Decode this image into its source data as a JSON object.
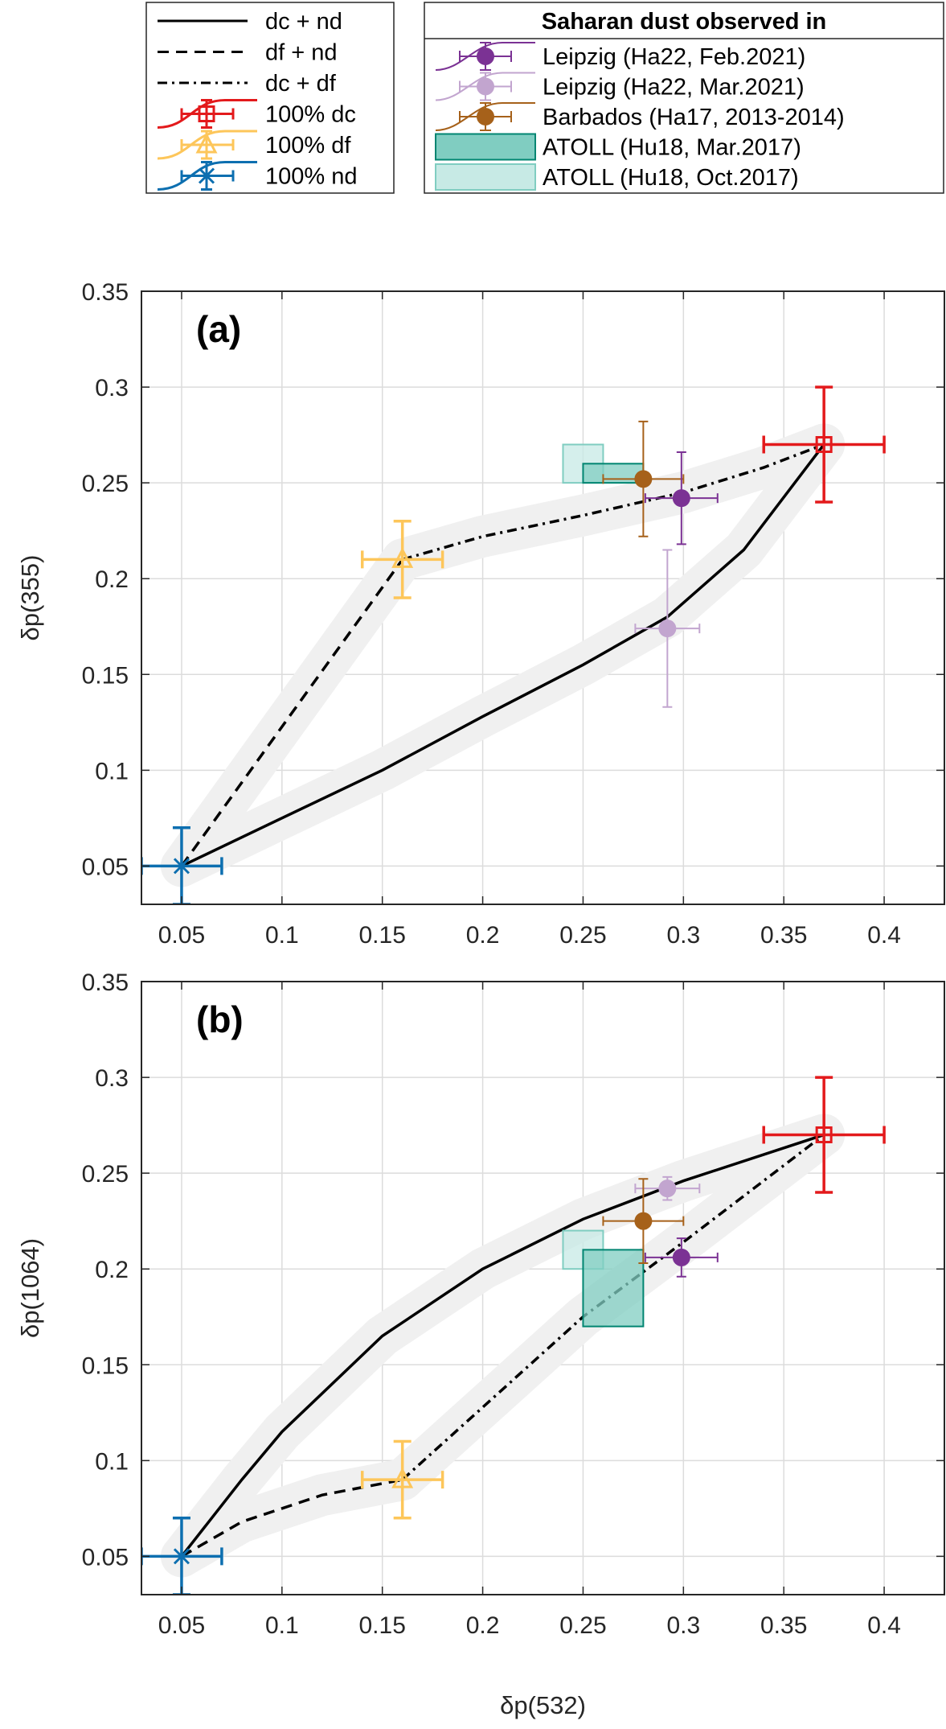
{
  "chart_data": {
    "type": "line",
    "colors": {
      "dc": "#e31a1c",
      "df": "#fdc65a",
      "nd": "#0d6fb0",
      "leipzig_feb": "#7b3294",
      "leipzig_mar": "#c2a5cf",
      "barbados": "#a6611a",
      "atoll_mar": "#018571",
      "atoll_mar_fill": "#80cdc1",
      "atoll_oct": "#80cdc1",
      "atoll_oct_fill": "#c7eae5",
      "band": "#f0f0f0"
    },
    "legend_model": {
      "items": [
        {
          "key": "dc_nd",
          "label": "dc + nd",
          "style": "solid"
        },
        {
          "key": "df_nd",
          "label": "df + nd",
          "style": "dashed"
        },
        {
          "key": "dc_df",
          "label": "dc + df",
          "style": "dashdot"
        },
        {
          "key": "dc",
          "label": "100% dc",
          "marker": "square"
        },
        {
          "key": "df",
          "label": "100% df",
          "marker": "triangle"
        },
        {
          "key": "nd",
          "label": "100% nd",
          "marker": "asterisk"
        }
      ]
    },
    "legend_obs": {
      "title": "Saharan dust observed in",
      "items": [
        {
          "key": "leipzig_feb",
          "label": "Leipzig (Ha22, Feb.2021)"
        },
        {
          "key": "leipzig_mar",
          "label": "Leipzig (Ha22, Mar.2021)"
        },
        {
          "key": "barbados",
          "label": "Barbados (Ha17, 2013-2014)"
        },
        {
          "key": "atoll_mar",
          "label": "ATOLL (Hu18, Mar.2017)"
        },
        {
          "key": "atoll_oct",
          "label": "ATOLL (Hu18, Oct.2017)"
        }
      ]
    },
    "xlabel": "δp(532)",
    "xlim": [
      0.03,
      0.43
    ],
    "xticks": [
      "0.05",
      "0.1",
      "0.15",
      "0.2",
      "0.25",
      "0.3",
      "0.35",
      "0.4"
    ],
    "yticks": [
      "0.05",
      "0.1",
      "0.15",
      "0.2",
      "0.25",
      "0.3",
      "0.35"
    ],
    "grid": true,
    "panels": [
      {
        "label": "(a)",
        "ylabel": "δp(355)",
        "ylim": [
          0.03,
          0.35
        ],
        "curves": {
          "dc_nd": [
            [
              0.05,
              0.05
            ],
            [
              0.1,
              0.075
            ],
            [
              0.15,
              0.1
            ],
            [
              0.2,
              0.128
            ],
            [
              0.25,
              0.155
            ],
            [
              0.292,
              0.18
            ],
            [
              0.33,
              0.215
            ],
            [
              0.37,
              0.27
            ]
          ],
          "df_nd": [
            [
              0.05,
              0.05
            ],
            [
              0.16,
              0.21
            ]
          ],
          "dc_df": [
            [
              0.16,
              0.21
            ],
            [
              0.2,
              0.222
            ],
            [
              0.25,
              0.233
            ],
            [
              0.3,
              0.245
            ],
            [
              0.34,
              0.258
            ],
            [
              0.37,
              0.27
            ]
          ]
        },
        "endmembers": {
          "dc": {
            "x": 0.37,
            "y": 0.27,
            "xerr": 0.03,
            "yerr": 0.03
          },
          "df": {
            "x": 0.16,
            "y": 0.21,
            "xerr": 0.02,
            "yerr": 0.02
          },
          "nd": {
            "x": 0.05,
            "y": 0.05,
            "xerr": 0.02,
            "yerr": 0.02
          }
        },
        "points": [
          {
            "key": "barbados",
            "x": 0.28,
            "y": 0.252,
            "xerr": 0.02,
            "yerr": 0.03
          },
          {
            "key": "leipzig_feb",
            "x": 0.299,
            "y": 0.242,
            "xerr": 0.018,
            "yerr": 0.024
          },
          {
            "key": "leipzig_mar",
            "x": 0.292,
            "y": 0.174,
            "xerr": 0.016,
            "yerr": 0.041
          }
        ],
        "boxes": [
          {
            "key": "atoll_oct",
            "x": [
              0.24,
              0.26
            ],
            "y": [
              0.25,
              0.27
            ]
          },
          {
            "key": "atoll_mar",
            "x": [
              0.25,
              0.28
            ],
            "y": [
              0.25,
              0.26
            ]
          }
        ]
      },
      {
        "label": "(b)",
        "ylabel": "δp(1064)",
        "ylim": [
          0.03,
          0.35
        ],
        "curves": {
          "dc_nd": [
            [
              0.05,
              0.05
            ],
            [
              0.08,
              0.09
            ],
            [
              0.1,
              0.115
            ],
            [
              0.15,
              0.165
            ],
            [
              0.2,
              0.2
            ],
            [
              0.25,
              0.226
            ],
            [
              0.3,
              0.246
            ],
            [
              0.37,
              0.27
            ]
          ],
          "df_nd": [
            [
              0.05,
              0.05
            ],
            [
              0.08,
              0.068
            ],
            [
              0.12,
              0.082
            ],
            [
              0.16,
              0.09
            ]
          ],
          "dc_df": [
            [
              0.16,
              0.09
            ],
            [
              0.25,
              0.175
            ],
            [
              0.3,
              0.214
            ],
            [
              0.37,
              0.27
            ]
          ]
        },
        "endmembers": {
          "dc": {
            "x": 0.37,
            "y": 0.27,
            "xerr": 0.03,
            "yerr": 0.03
          },
          "df": {
            "x": 0.16,
            "y": 0.09,
            "xerr": 0.02,
            "yerr": 0.02
          },
          "nd": {
            "x": 0.05,
            "y": 0.05,
            "xerr": 0.02,
            "yerr": 0.02
          }
        },
        "points": [
          {
            "key": "leipzig_mar",
            "x": 0.292,
            "y": 0.242,
            "xerr": 0.016,
            "yerr": 0.006
          },
          {
            "key": "barbados",
            "x": 0.28,
            "y": 0.225,
            "xerr": 0.02,
            "yerr": 0.022
          },
          {
            "key": "leipzig_feb",
            "x": 0.299,
            "y": 0.206,
            "xerr": 0.018,
            "yerr": 0.01
          }
        ],
        "boxes": [
          {
            "key": "atoll_oct",
            "x": [
              0.24,
              0.26
            ],
            "y": [
              0.2,
              0.22
            ]
          },
          {
            "key": "atoll_mar",
            "x": [
              0.25,
              0.28
            ],
            "y": [
              0.17,
              0.21
            ]
          }
        ]
      }
    ]
  }
}
